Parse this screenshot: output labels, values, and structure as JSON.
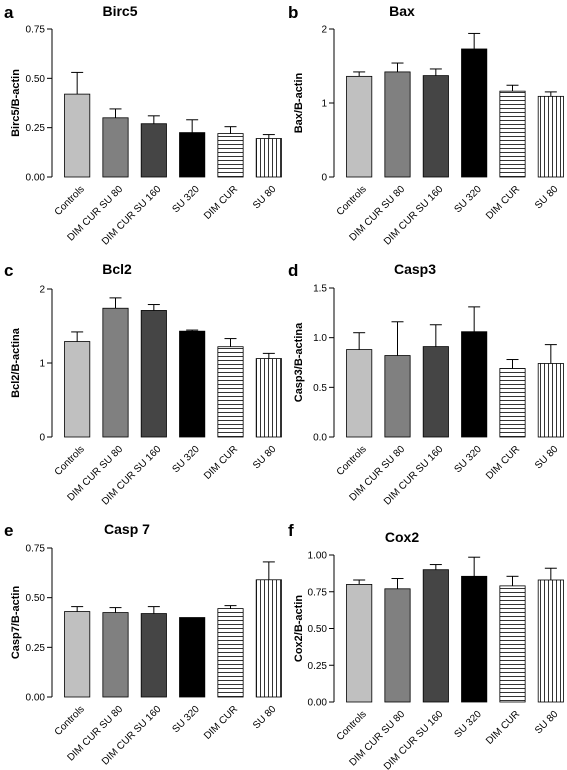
{
  "figure": {
    "panel_count": 6
  },
  "chart_data": [
    {
      "panel": "a",
      "type": "bar",
      "title": "Birc5",
      "ylabel": "Birc5/B-actin",
      "xlabel": "",
      "categories": [
        "Controls",
        "DIM CUR SU 80",
        "DIM CUR SU 160",
        "SU 320",
        "DIM CUR",
        "SU 80"
      ],
      "values": [
        0.42,
        0.3,
        0.27,
        0.225,
        0.22,
        0.195
      ],
      "errors": [
        0.11,
        0.045,
        0.04,
        0.065,
        0.035,
        0.02
      ],
      "ylim": [
        0,
        0.75
      ],
      "yticks": [
        0,
        0.25,
        0.5,
        0.75
      ],
      "ytick_labels": [
        "0.00",
        "0.25",
        "0.50",
        "0.75"
      ],
      "bar_styles": [
        "light-gray",
        "medium-gray",
        "dark-gray",
        "black",
        "horizontal-stripes",
        "vertical-stripes"
      ]
    },
    {
      "panel": "b",
      "type": "bar",
      "title": "Bax",
      "ylabel": "Bax/B-actin",
      "xlabel": "",
      "categories": [
        "Controls",
        "DIM CUR SU 80",
        "DIM CUR SU 160",
        "SU 320",
        "DIM CUR",
        "SU 80"
      ],
      "values": [
        1.36,
        1.42,
        1.37,
        1.73,
        1.16,
        1.09
      ],
      "errors": [
        0.06,
        0.12,
        0.09,
        0.21,
        0.08,
        0.06
      ],
      "ylim": [
        0,
        2
      ],
      "yticks": [
        0,
        1,
        2
      ],
      "ytick_labels": [
        "0",
        "1",
        "2"
      ],
      "bar_styles": [
        "light-gray",
        "medium-gray",
        "dark-gray",
        "black",
        "horizontal-stripes",
        "vertical-stripes"
      ]
    },
    {
      "panel": "c",
      "type": "bar",
      "title": "Bcl2",
      "ylabel": "Bcl2/B-actina",
      "xlabel": "",
      "categories": [
        "Controls",
        "DIM CUR SU 80",
        "DIM CUR SU 160",
        "SU 320",
        "DIM CUR",
        "SU 80"
      ],
      "values": [
        1.29,
        1.74,
        1.71,
        1.43,
        1.22,
        1.06
      ],
      "errors": [
        0.13,
        0.14,
        0.08,
        0.015,
        0.11,
        0.07
      ],
      "ylim": [
        0,
        2
      ],
      "yticks": [
        0,
        1,
        2
      ],
      "ytick_labels": [
        "0",
        "1",
        "2"
      ],
      "bar_styles": [
        "light-gray",
        "medium-gray",
        "dark-gray",
        "black",
        "horizontal-stripes",
        "vertical-stripes"
      ]
    },
    {
      "panel": "d",
      "type": "bar",
      "title": "Casp3",
      "ylabel": "Casp3/B-actina",
      "xlabel": "",
      "categories": [
        "Controls",
        "DIM CUR SU 80",
        "DIM CUR SU 160",
        "SU 320",
        "DIM CUR",
        "SU 80"
      ],
      "values": [
        0.88,
        0.82,
        0.91,
        1.06,
        0.69,
        0.74
      ],
      "errors": [
        0.17,
        0.34,
        0.22,
        0.25,
        0.09,
        0.19
      ],
      "ylim": [
        0,
        1.5
      ],
      "yticks": [
        0,
        0.5,
        1.0,
        1.5
      ],
      "ytick_labels": [
        "0.0",
        "0.5",
        "1.0",
        "1.5"
      ],
      "bar_styles": [
        "light-gray",
        "medium-gray",
        "dark-gray",
        "black",
        "horizontal-stripes",
        "vertical-stripes"
      ]
    },
    {
      "panel": "e",
      "type": "bar",
      "title": "Casp 7",
      "ylabel": "Casp7/B-actin",
      "xlabel": "",
      "categories": [
        "Controls",
        "DIM CUR SU 80",
        "DIM CUR SU 160",
        "SU 320",
        "DIM CUR",
        "SU 80"
      ],
      "values": [
        0.43,
        0.425,
        0.42,
        0.4,
        0.445,
        0.59
      ],
      "errors": [
        0.025,
        0.025,
        0.035,
        0.0,
        0.015,
        0.09
      ],
      "ylim": [
        0,
        0.75
      ],
      "yticks": [
        0,
        0.25,
        0.5,
        0.75
      ],
      "ytick_labels": [
        "0.00",
        "0.25",
        "0.50",
        "0.75"
      ],
      "bar_styles": [
        "light-gray",
        "medium-gray",
        "dark-gray",
        "black",
        "horizontal-stripes",
        "vertical-stripes"
      ]
    },
    {
      "panel": "f",
      "type": "bar",
      "title": "Cox2",
      "ylabel": "Cox2/B-actin",
      "xlabel": "",
      "categories": [
        "Controls",
        "DIM CUR SU 80",
        "DIM CUR SU 160",
        "SU 320",
        "DIM CUR",
        "SU 80"
      ],
      "values": [
        0.8,
        0.77,
        0.9,
        0.855,
        0.79,
        0.83
      ],
      "errors": [
        0.03,
        0.07,
        0.035,
        0.13,
        0.065,
        0.08
      ],
      "ylim": [
        0,
        1.0
      ],
      "yticks": [
        0,
        0.25,
        0.5,
        0.75,
        1.0
      ],
      "ytick_labels": [
        "0.00",
        "0.25",
        "0.50",
        "0.75",
        "1.00"
      ],
      "bar_styles": [
        "light-gray",
        "medium-gray",
        "dark-gray",
        "black",
        "horizontal-stripes",
        "vertical-stripes"
      ]
    }
  ],
  "bar_colors": {
    "light-gray": "#c0c0c0",
    "medium-gray": "#808080",
    "dark-gray": "#454545",
    "black": "#000000",
    "stripe-line": "#000000",
    "background": "#ffffff"
  }
}
